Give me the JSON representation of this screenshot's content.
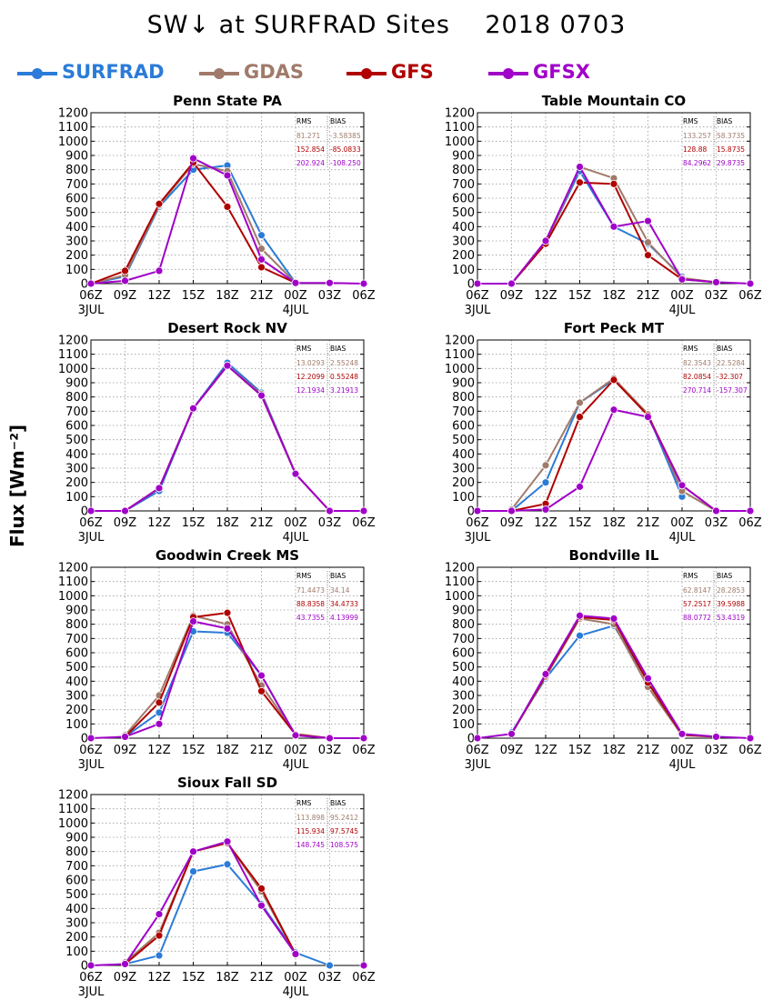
{
  "title": "SW↓ at SURFRAD Sites    2018 0703",
  "ylabel": "Flux [Wm⁻²]",
  "legend": [
    {
      "label": "SURFRAD",
      "color": "#2b7bd8"
    },
    {
      "label": "GDAS",
      "color": "#a07a6a"
    },
    {
      "label": "GFS",
      "color": "#b00000"
    },
    {
      "label": "GFSX",
      "color": "#a000c8"
    }
  ],
  "stats_header": {
    "rms": "RMS",
    "bias": "BIAS"
  },
  "chart_data": [
    {
      "type": "line",
      "title": "Penn State PA",
      "categories": [
        "06Z",
        "09Z",
        "12Z",
        "15Z",
        "18Z",
        "21Z",
        "00Z",
        "03Z",
        "06Z"
      ],
      "date_labels": [
        "3JUL",
        "",
        "",
        "",
        "",
        "",
        "4JUL",
        "",
        ""
      ],
      "ylim": [
        0,
        1200
      ],
      "yticks": [
        0,
        100,
        200,
        300,
        400,
        500,
        600,
        700,
        800,
        900,
        1000,
        1100,
        1200
      ],
      "grid": true,
      "stats": [
        {
          "series": "GDAS",
          "rms": "81.271",
          "bias": "-3.58385"
        },
        {
          "series": "GFS",
          "rms": "152.854",
          "bias": "-85.0833"
        },
        {
          "series": "GFSX",
          "rms": "202.924",
          "bias": "-108.250"
        }
      ],
      "series": [
        {
          "name": "SURFRAD",
          "values": [
            0,
            50,
            540,
            800,
            830,
            340,
            5,
            null,
            null
          ]
        },
        {
          "name": "GDAS",
          "values": [
            0,
            60,
            550,
            840,
            790,
            245,
            5,
            null,
            null
          ]
        },
        {
          "name": "GFS",
          "values": [
            0,
            90,
            560,
            850,
            540,
            115,
            5,
            null,
            null
          ]
        },
        {
          "name": "GFSX",
          "values": [
            0,
            20,
            90,
            880,
            760,
            170,
            5,
            5,
            0
          ]
        }
      ]
    },
    {
      "type": "line",
      "title": "Table Mountain CO",
      "categories": [
        "06Z",
        "09Z",
        "12Z",
        "15Z",
        "18Z",
        "21Z",
        "00Z",
        "03Z",
        "06Z"
      ],
      "date_labels": [
        "3JUL",
        "",
        "",
        "",
        "",
        "",
        "4JUL",
        "",
        ""
      ],
      "ylim": [
        0,
        1200
      ],
      "yticks": [
        0,
        100,
        200,
        300,
        400,
        500,
        600,
        700,
        800,
        900,
        1000,
        1100,
        1200
      ],
      "grid": true,
      "stats": [
        {
          "series": "GDAS",
          "rms": "133.257",
          "bias": "58.3735"
        },
        {
          "series": "GFS",
          "rms": "128.88",
          "bias": "15.8735"
        },
        {
          "series": "GFSX",
          "rms": "84.2962",
          "bias": "29.8735"
        }
      ],
      "series": [
        {
          "name": "SURFRAD",
          "values": [
            null,
            0,
            290,
            790,
            400,
            280,
            50,
            null,
            null
          ]
        },
        {
          "name": "GDAS",
          "values": [
            null,
            0,
            280,
            820,
            740,
            290,
            40,
            10,
            null
          ]
        },
        {
          "name": "GFS",
          "values": [
            null,
            0,
            280,
            710,
            700,
            200,
            30,
            10,
            null
          ]
        },
        {
          "name": "GFSX",
          "values": [
            0,
            0,
            300,
            820,
            400,
            440,
            30,
            10,
            0
          ]
        }
      ]
    },
    {
      "type": "line",
      "title": "Desert Rock NV",
      "categories": [
        "06Z",
        "09Z",
        "12Z",
        "15Z",
        "18Z",
        "21Z",
        "00Z",
        "03Z",
        "06Z"
      ],
      "date_labels": [
        "3JUL",
        "",
        "",
        "",
        "",
        "",
        "4JUL",
        "",
        ""
      ],
      "ylim": [
        0,
        1200
      ],
      "yticks": [
        0,
        100,
        200,
        300,
        400,
        500,
        600,
        700,
        800,
        900,
        1000,
        1100,
        1200
      ],
      "grid": true,
      "stats": [
        {
          "series": "GDAS",
          "rms": "13.0293",
          "bias": "2.55248"
        },
        {
          "series": "GFS",
          "rms": "12.2099",
          "bias": "0.55248"
        },
        {
          "series": "GFSX",
          "rms": "12.1934",
          "bias": "3.21913"
        }
      ],
      "series": [
        {
          "name": "SURFRAD",
          "values": [
            null,
            0,
            140,
            720,
            1040,
            830,
            260,
            null,
            null
          ]
        },
        {
          "name": "GDAS",
          "values": [
            null,
            0,
            160,
            720,
            1020,
            820,
            260,
            0,
            null
          ]
        },
        {
          "name": "GFS",
          "values": [
            null,
            0,
            160,
            720,
            1020,
            810,
            260,
            0,
            null
          ]
        },
        {
          "name": "GFSX",
          "values": [
            0,
            0,
            160,
            720,
            1020,
            810,
            260,
            0,
            0
          ]
        }
      ]
    },
    {
      "type": "line",
      "title": "Fort Peck MT",
      "categories": [
        "06Z",
        "09Z",
        "12Z",
        "15Z",
        "18Z",
        "21Z",
        "00Z",
        "03Z",
        "06Z"
      ],
      "date_labels": [
        "3JUL",
        "",
        "",
        "",
        "",
        "",
        "4JUL",
        "",
        ""
      ],
      "ylim": [
        0,
        1200
      ],
      "yticks": [
        0,
        100,
        200,
        300,
        400,
        500,
        600,
        700,
        800,
        900,
        1000,
        1100,
        1200
      ],
      "grid": true,
      "stats": [
        {
          "series": "GDAS",
          "rms": "82.3543",
          "bias": "22.5284"
        },
        {
          "series": "GFS",
          "rms": "82.0854",
          "bias": "-32.307"
        },
        {
          "series": "GFSX",
          "rms": "270.714",
          "bias": "-157.307"
        }
      ],
      "series": [
        {
          "name": "SURFRAD",
          "values": [
            null,
            0,
            200,
            760,
            920,
            680,
            100,
            null,
            null
          ]
        },
        {
          "name": "GDAS",
          "values": [
            null,
            10,
            320,
            760,
            930,
            680,
            140,
            0,
            null
          ]
        },
        {
          "name": "GFS",
          "values": [
            null,
            0,
            50,
            660,
            920,
            670,
            180,
            0,
            null
          ]
        },
        {
          "name": "GFSX",
          "values": [
            0,
            0,
            10,
            170,
            710,
            660,
            180,
            0,
            0
          ]
        }
      ]
    },
    {
      "type": "line",
      "title": "Goodwin Creek MS",
      "categories": [
        "06Z",
        "09Z",
        "12Z",
        "15Z",
        "18Z",
        "21Z",
        "00Z",
        "03Z",
        "06Z"
      ],
      "date_labels": [
        "3JUL",
        "",
        "",
        "",
        "",
        "",
        "4JUL",
        "",
        ""
      ],
      "ylim": [
        0,
        1200
      ],
      "yticks": [
        0,
        100,
        200,
        300,
        400,
        500,
        600,
        700,
        800,
        900,
        1000,
        1100,
        1200
      ],
      "grid": true,
      "stats": [
        {
          "series": "GDAS",
          "rms": "71.4473",
          "bias": "34.14"
        },
        {
          "series": "GFS",
          "rms": "88.8358",
          "bias": "34.4733"
        },
        {
          "series": "GFSX",
          "rms": "43.7355",
          "bias": "4.13999"
        }
      ],
      "series": [
        {
          "name": "SURFRAD",
          "values": [
            null,
            10,
            180,
            750,
            740,
            440,
            20,
            null,
            null
          ]
        },
        {
          "name": "GDAS",
          "values": [
            null,
            20,
            300,
            860,
            800,
            370,
            30,
            0,
            null
          ]
        },
        {
          "name": "GFS",
          "values": [
            null,
            10,
            250,
            850,
            880,
            330,
            25,
            0,
            null
          ]
        },
        {
          "name": "GFSX",
          "values": [
            0,
            10,
            100,
            820,
            770,
            440,
            20,
            0,
            0
          ]
        }
      ]
    },
    {
      "type": "line",
      "title": "Bondville IL",
      "categories": [
        "06Z",
        "09Z",
        "12Z",
        "15Z",
        "18Z",
        "21Z",
        "00Z",
        "03Z",
        "06Z"
      ],
      "date_labels": [
        "3JUL",
        "",
        "",
        "",
        "",
        "",
        "4JUL",
        "",
        ""
      ],
      "ylim": [
        0,
        1200
      ],
      "yticks": [
        0,
        100,
        200,
        300,
        400,
        500,
        600,
        700,
        800,
        900,
        1000,
        1100,
        1200
      ],
      "grid": true,
      "stats": [
        {
          "series": "GDAS",
          "rms": "62.8147",
          "bias": "28.2853"
        },
        {
          "series": "GFS",
          "rms": "57.2517",
          "bias": "39.5988"
        },
        {
          "series": "GFSX",
          "rms": "88.0772",
          "bias": "53.4319"
        }
      ],
      "series": [
        {
          "name": "SURFRAD",
          "values": [
            null,
            40,
            420,
            720,
            790,
            400,
            20,
            null,
            null
          ]
        },
        {
          "name": "GDAS",
          "values": [
            null,
            30,
            430,
            840,
            800,
            360,
            20,
            10,
            null
          ]
        },
        {
          "name": "GFS",
          "values": [
            null,
            30,
            440,
            850,
            830,
            390,
            25,
            10,
            null
          ]
        },
        {
          "name": "GFSX",
          "values": [
            0,
            30,
            450,
            860,
            840,
            420,
            30,
            10,
            0
          ]
        }
      ]
    },
    {
      "type": "line",
      "title": "Sioux Fall SD",
      "categories": [
        "06Z",
        "09Z",
        "12Z",
        "15Z",
        "18Z",
        "21Z",
        "00Z",
        "03Z",
        "06Z"
      ],
      "date_labels": [
        "3JUL",
        "",
        "",
        "",
        "",
        "",
        "4JUL",
        "",
        ""
      ],
      "ylim": [
        0,
        1200
      ],
      "yticks": [
        0,
        100,
        200,
        300,
        400,
        500,
        600,
        700,
        800,
        900,
        1000,
        1100,
        1200
      ],
      "grid": true,
      "stats": [
        {
          "series": "GDAS",
          "rms": "113.898",
          "bias": "95.2412"
        },
        {
          "series": "GFS",
          "rms": "115.934",
          "bias": "97.5745"
        },
        {
          "series": "GFSX",
          "rms": "148.745",
          "bias": "108.575"
        }
      ],
      "series": [
        {
          "name": "SURFRAD",
          "values": [
            null,
            10,
            70,
            660,
            710,
            430,
            90,
            0,
            null
          ]
        },
        {
          "name": "GDAS",
          "values": [
            null,
            20,
            230,
            800,
            860,
            520,
            80,
            null,
            null
          ]
        },
        {
          "name": "GFS",
          "values": [
            null,
            10,
            210,
            800,
            860,
            540,
            80,
            null,
            null
          ]
        },
        {
          "name": "GFSX",
          "values": [
            0,
            10,
            360,
            800,
            870,
            420,
            80,
            null,
            0
          ]
        }
      ]
    }
  ]
}
